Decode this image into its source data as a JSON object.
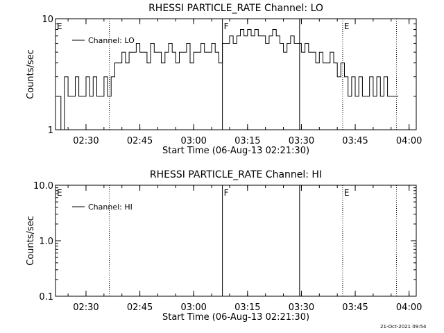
{
  "chart_data": [
    {
      "type": "line",
      "title": "RHESSI PARTICLE_RATE Channel: LO",
      "xlabel": "Start Time (06-Aug-13 02:21:30)",
      "ylabel": "Counts/sec",
      "yscale": "log",
      "ylim": [
        1,
        10
      ],
      "xlim": [
        "02:21:30",
        "04:02:00"
      ],
      "x_ticks": [
        "02:30",
        "02:45",
        "03:00",
        "03:15",
        "03:30",
        "03:45",
        "04:00"
      ],
      "y_ticks": [
        "1",
        "10"
      ],
      "legend": {
        "label": "Channel: LO",
        "placement": "top-left"
      },
      "markers": [
        {
          "time": "02:21:30",
          "label": "E",
          "style": "dotted"
        },
        {
          "time": "02:36:30",
          "label": "",
          "style": "dotted"
        },
        {
          "time": "03:08:00",
          "label": "F",
          "style": "solid"
        },
        {
          "time": "03:29:30",
          "label": "",
          "style": "solid"
        },
        {
          "time": "03:41:30",
          "label": "E",
          "style": "dotted"
        },
        {
          "time": "03:56:30",
          "label": "",
          "style": "dotted"
        }
      ],
      "series": [
        {
          "name": "Channel: LO",
          "x": [
            "02:22:00",
            "02:23:00",
            "02:24:00",
            "02:25:00",
            "02:26:00",
            "02:27:00",
            "02:28:00",
            "02:29:00",
            "02:30:00",
            "02:31:00",
            "02:32:00",
            "02:33:00",
            "02:34:00",
            "02:35:00",
            "02:36:00",
            "02:37:00",
            "02:38:00",
            "02:39:00",
            "02:40:00",
            "02:41:00",
            "02:42:00",
            "02:43:00",
            "02:44:00",
            "02:45:00",
            "02:46:00",
            "02:47:00",
            "02:48:00",
            "02:49:00",
            "02:50:00",
            "02:51:00",
            "02:52:00",
            "02:53:00",
            "02:54:00",
            "02:55:00",
            "02:56:00",
            "02:57:00",
            "02:58:00",
            "02:59:00",
            "03:00:00",
            "03:01:00",
            "03:02:00",
            "03:03:00",
            "03:04:00",
            "03:05:00",
            "03:06:00",
            "03:07:00",
            "03:08:00",
            "03:09:00",
            "03:10:00",
            "03:11:00",
            "03:12:00",
            "03:13:00",
            "03:14:00",
            "03:15:00",
            "03:16:00",
            "03:17:00",
            "03:18:00",
            "03:19:00",
            "03:20:00",
            "03:21:00",
            "03:22:00",
            "03:23:00",
            "03:24:00",
            "03:25:00",
            "03:26:00",
            "03:27:00",
            "03:28:00",
            "03:29:00",
            "03:30:00",
            "03:31:00",
            "03:32:00",
            "03:33:00",
            "03:34:00",
            "03:35:00",
            "03:36:00",
            "03:37:00",
            "03:38:00",
            "03:39:00",
            "03:40:00",
            "03:41:00",
            "03:42:00",
            "03:43:00",
            "03:44:00",
            "03:45:00",
            "03:46:00",
            "03:47:00",
            "03:48:00",
            "03:49:00",
            "03:50:00",
            "03:51:00",
            "03:52:00",
            "03:53:00",
            "03:54:00",
            "03:55:00",
            "03:56:00"
          ],
          "y": [
            2,
            1,
            3,
            2,
            2,
            3,
            2,
            2,
            3,
            2,
            3,
            2,
            2,
            3,
            2,
            3,
            4,
            4,
            5,
            4,
            5,
            5,
            6,
            5,
            5,
            4,
            6,
            5,
            5,
            4,
            5,
            6,
            5,
            4,
            5,
            5,
            6,
            4,
            5,
            5,
            6,
            5,
            5,
            6,
            5,
            4,
            6,
            6,
            7,
            6,
            7,
            8,
            7,
            8,
            7,
            8,
            7,
            7,
            6,
            7,
            8,
            7,
            6,
            5,
            6,
            7,
            6,
            6,
            5,
            6,
            5,
            5,
            4,
            5,
            4,
            4,
            5,
            4,
            3,
            4,
            3,
            2,
            3,
            2,
            3,
            2,
            2,
            3,
            2,
            3,
            2,
            3,
            2,
            2,
            2
          ]
        }
      ]
    },
    {
      "type": "line",
      "title": "RHESSI PARTICLE_RATE Channel: HI",
      "xlabel": "Start Time (06-Aug-13 02:21:30)",
      "ylabel": "Counts/sec",
      "yscale": "log",
      "ylim": [
        0.1,
        10
      ],
      "xlim": [
        "02:21:30",
        "04:02:00"
      ],
      "x_ticks": [
        "02:30",
        "02:45",
        "03:00",
        "03:15",
        "03:30",
        "03:45",
        "04:00"
      ],
      "y_ticks": [
        "0.1",
        "1.0",
        "10.0"
      ],
      "legend": {
        "label": "Channel: HI",
        "placement": "top-left"
      },
      "markers": [
        {
          "time": "02:21:30",
          "label": "E",
          "style": "dotted"
        },
        {
          "time": "02:36:30",
          "label": "",
          "style": "dotted"
        },
        {
          "time": "03:08:00",
          "label": "F",
          "style": "solid"
        },
        {
          "time": "03:29:30",
          "label": "",
          "style": "solid"
        },
        {
          "time": "03:41:30",
          "label": "E",
          "style": "dotted"
        },
        {
          "time": "03:56:30",
          "label": "",
          "style": "dotted"
        }
      ],
      "series": [
        {
          "name": "Channel: HI",
          "x": [],
          "y": []
        }
      ]
    }
  ],
  "footer": {
    "timestamp": "21-Oct-2021 09:54"
  }
}
